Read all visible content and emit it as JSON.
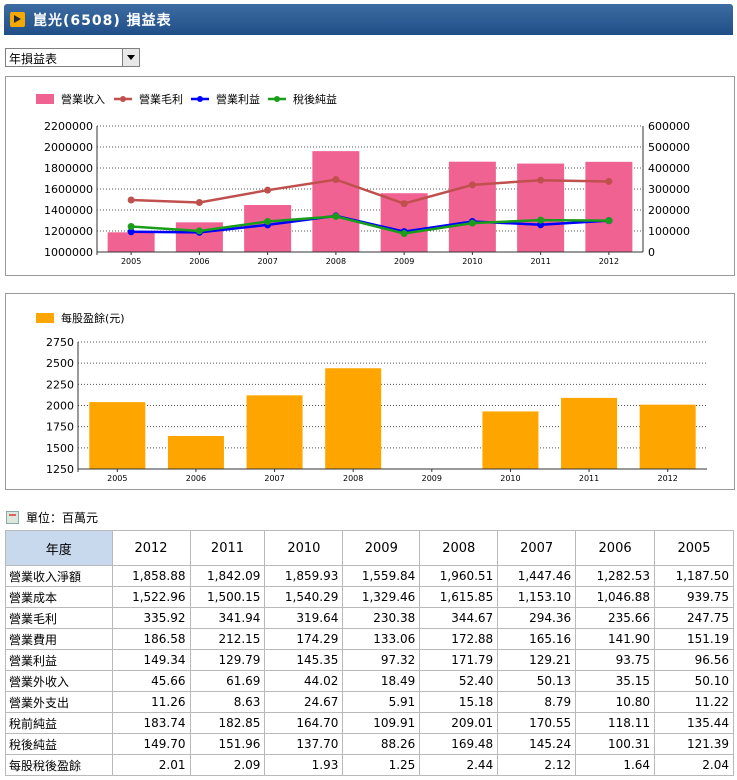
{
  "header": {
    "title": "崑光(6508) 損益表"
  },
  "selector": {
    "value": "年損益表"
  },
  "colors": {
    "revenue": "#f06292",
    "gross_profit": "#c0504d",
    "operating_income": "#0000ff",
    "net_income": "#1a9e1a",
    "eps": "#ffa500"
  },
  "chart_data": [
    {
      "type": "bar",
      "legend_position": "top-left",
      "grid": true,
      "categories": [
        "2005",
        "2006",
        "2007",
        "2008",
        "2009",
        "2010",
        "2011",
        "2012"
      ],
      "y_left_ticks": [
        "2200000",
        "2000000",
        "1800000",
        "1600000",
        "1400000",
        "1200000",
        "1000000"
      ],
      "y_right_ticks": [
        "600000",
        "500000",
        "400000",
        "300000",
        "200000",
        "100000",
        "0"
      ],
      "ylim_left": [
        1000000,
        2200000
      ],
      "ylim_right": [
        0,
        600000
      ],
      "series": [
        {
          "name": "營業收入",
          "type": "bar",
          "axis": "left",
          "color": "#f06292",
          "values": [
            1187500,
            1282530,
            1447460,
            1960510,
            1559840,
            1859930,
            1842090,
            1858880
          ]
        },
        {
          "name": "營業毛利",
          "type": "line",
          "axis": "right",
          "color": "#c0504d",
          "values": [
            247750,
            235660,
            294360,
            344670,
            230380,
            319640,
            341940,
            335920
          ]
        },
        {
          "name": "營業利益",
          "type": "line",
          "axis": "right",
          "color": "#0000ff",
          "values": [
            96560,
            93750,
            129210,
            171790,
            97320,
            145350,
            129790,
            149340
          ]
        },
        {
          "name": "稅後純益",
          "type": "line",
          "axis": "right",
          "color": "#1a9e1a",
          "values": [
            121390,
            100310,
            145240,
            169480,
            88260,
            137700,
            151960,
            149700
          ]
        }
      ]
    },
    {
      "type": "bar",
      "legend_position": "top-left",
      "grid": true,
      "categories": [
        "2005",
        "2006",
        "2007",
        "2008",
        "2009",
        "2010",
        "2011",
        "2012"
      ],
      "y_ticks": [
        "2750",
        "2500",
        "2250",
        "2000",
        "1750",
        "1500",
        "1250"
      ],
      "ylim": [
        1250,
        2750
      ],
      "series": [
        {
          "name": "每股盈餘(元)",
          "color": "#ffa500",
          "values": [
            2040,
            1640,
            2120,
            2440,
            1250,
            1930,
            2090,
            2010
          ]
        }
      ]
    }
  ],
  "table": {
    "unit_label": "單位：百萬元",
    "columns": [
      "年度",
      "2012",
      "2011",
      "2010",
      "2009",
      "2008",
      "2007",
      "2006",
      "2005"
    ],
    "rows": [
      {
        "label": "營業收入淨額",
        "values": [
          "1,858.88",
          "1,842.09",
          "1,859.93",
          "1,559.84",
          "1,960.51",
          "1,447.46",
          "1,282.53",
          "1,187.50"
        ]
      },
      {
        "label": "營業成本",
        "values": [
          "1,522.96",
          "1,500.15",
          "1,540.29",
          "1,329.46",
          "1,615.85",
          "1,153.10",
          "1,046.88",
          "939.75"
        ]
      },
      {
        "label": "營業毛利",
        "values": [
          "335.92",
          "341.94",
          "319.64",
          "230.38",
          "344.67",
          "294.36",
          "235.66",
          "247.75"
        ]
      },
      {
        "label": "營業費用",
        "values": [
          "186.58",
          "212.15",
          "174.29",
          "133.06",
          "172.88",
          "165.16",
          "141.90",
          "151.19"
        ]
      },
      {
        "label": "營業利益",
        "values": [
          "149.34",
          "129.79",
          "145.35",
          "97.32",
          "171.79",
          "129.21",
          "93.75",
          "96.56"
        ]
      },
      {
        "label": "營業外收入",
        "values": [
          "45.66",
          "61.69",
          "44.02",
          "18.49",
          "52.40",
          "50.13",
          "35.15",
          "50.10"
        ]
      },
      {
        "label": "營業外支出",
        "values": [
          "11.26",
          "8.63",
          "24.67",
          "5.91",
          "15.18",
          "8.79",
          "10.80",
          "11.22"
        ]
      },
      {
        "label": "稅前純益",
        "values": [
          "183.74",
          "182.85",
          "164.70",
          "109.91",
          "209.01",
          "170.55",
          "118.11",
          "135.44"
        ]
      },
      {
        "label": "稅後純益",
        "values": [
          "149.70",
          "151.96",
          "137.70",
          "88.26",
          "169.48",
          "145.24",
          "100.31",
          "121.39"
        ]
      },
      {
        "label": "每股稅後盈餘",
        "values": [
          "2.01",
          "2.09",
          "1.93",
          "1.25",
          "2.44",
          "2.12",
          "1.64",
          "2.04"
        ]
      }
    ]
  }
}
